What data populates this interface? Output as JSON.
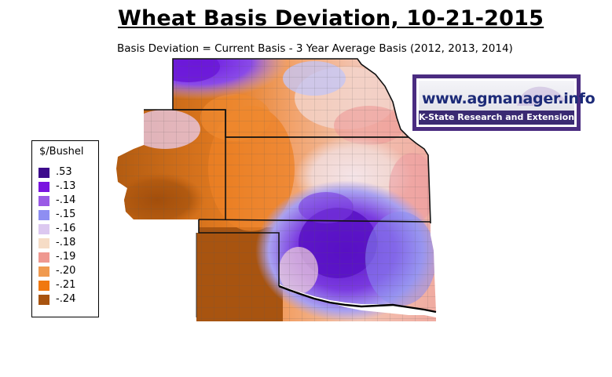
{
  "title": "Wheat Basis Deviation, 10-21-2015",
  "subtitle": "Basis Deviation = Current Basis - 3 Year Average Basis (2012, 2013, 2014)",
  "legend": {
    "title": "$/Bushel",
    "items": [
      {
        "label": ".53",
        "color": "#3d0a8c"
      },
      {
        "label": "-.13",
        "color": "#7a14e0"
      },
      {
        "label": "-.14",
        "color": "#9a5ae6"
      },
      {
        "label": "-.15",
        "color": "#8e8ef2"
      },
      {
        "label": "-.16",
        "color": "#dcc8f0"
      },
      {
        "label": "-.18",
        "color": "#f6dcc6"
      },
      {
        "label": "-.19",
        "color": "#ef9890"
      },
      {
        "label": "-.20",
        "color": "#f09a50"
      },
      {
        "label": "-.21",
        "color": "#f07810"
      },
      {
        "label": "-.24",
        "color": "#a85410"
      }
    ]
  },
  "logo": {
    "url_text": "www.agmanager.info",
    "subtitle": "K-State Research and Extension"
  }
}
